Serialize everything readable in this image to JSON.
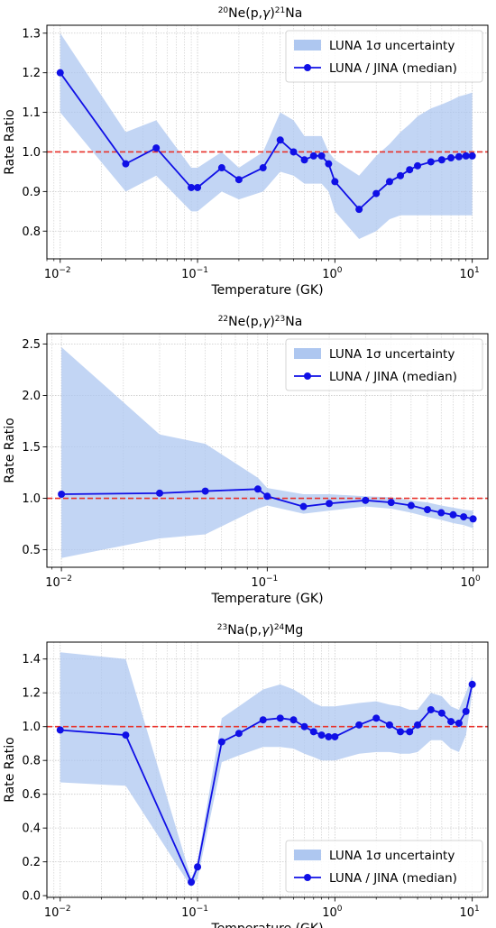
{
  "chart_data": [
    {
      "type": "line",
      "title": "²⁰Ne(p,γ)²¹Na",
      "title_parts": {
        "m1": "20",
        "a": "Ne(p,",
        "g": "γ",
        "b": ")",
        "m2": "21",
        "c": "Na"
      },
      "xlabel": "Temperature (GK)",
      "ylabel": "Rate Ratio",
      "xscale": "log",
      "xlim": [
        0.008,
        13
      ],
      "ylim": [
        0.73,
        1.32
      ],
      "xticks": [
        0.01,
        0.1,
        1,
        10
      ],
      "xtick_labels": [
        {
          "base": "10",
          "exp": "−2"
        },
        {
          "base": "10",
          "exp": "−1"
        },
        {
          "base": "10",
          "exp": "0"
        },
        {
          "base": "10",
          "exp": "1"
        }
      ],
      "yticks": [
        0.8,
        0.9,
        1.0,
        1.1,
        1.2,
        1.3
      ],
      "ytick_labels": [
        "0.8",
        "0.9",
        "1.0",
        "1.1",
        "1.2",
        "1.3"
      ],
      "grid": true,
      "legend_position": "top-right",
      "reference_line": {
        "y": 1.0,
        "color": "#e8312a",
        "style": "dashed"
      },
      "band": {
        "name": "LUNA 1σ uncertainty",
        "color": "#aec7f0",
        "x": [
          0.01,
          0.03,
          0.05,
          0.09,
          0.1,
          0.15,
          0.2,
          0.3,
          0.4,
          0.5,
          0.6,
          0.7,
          0.8,
          0.9,
          1.0,
          1.5,
          2,
          2.5,
          3,
          3.5,
          4,
          5,
          6,
          7,
          8,
          9,
          10
        ],
        "upper": [
          1.3,
          1.05,
          1.08,
          0.96,
          0.96,
          1.0,
          0.96,
          1.0,
          1.1,
          1.08,
          1.04,
          1.04,
          1.04,
          1.0,
          0.98,
          0.94,
          0.99,
          1.02,
          1.05,
          1.07,
          1.09,
          1.11,
          1.12,
          1.13,
          1.14,
          1.145,
          1.15
        ],
        "lower": [
          1.1,
          0.9,
          0.94,
          0.85,
          0.85,
          0.9,
          0.88,
          0.9,
          0.95,
          0.94,
          0.92,
          0.92,
          0.92,
          0.9,
          0.85,
          0.78,
          0.8,
          0.83,
          0.84,
          0.84,
          0.84,
          0.84,
          0.84,
          0.84,
          0.84,
          0.84,
          0.84
        ]
      },
      "series": [
        {
          "name": "LUNA / JINA (median)",
          "color": "#1010e6",
          "x": [
            0.01,
            0.03,
            0.05,
            0.09,
            0.1,
            0.15,
            0.2,
            0.3,
            0.4,
            0.5,
            0.6,
            0.7,
            0.8,
            0.9,
            1.0,
            1.5,
            2,
            2.5,
            3,
            3.5,
            4,
            5,
            6,
            7,
            8,
            9,
            10
          ],
          "values": [
            1.2,
            0.97,
            1.01,
            0.91,
            0.91,
            0.96,
            0.93,
            0.96,
            1.03,
            1.0,
            0.98,
            0.99,
            0.99,
            0.97,
            0.925,
            0.855,
            0.895,
            0.925,
            0.94,
            0.955,
            0.965,
            0.975,
            0.98,
            0.985,
            0.988,
            0.99,
            0.99
          ]
        }
      ]
    },
    {
      "type": "line",
      "title": "²²Ne(p,γ)²³Na",
      "title_parts": {
        "m1": "22",
        "a": "Ne(p,",
        "g": "γ",
        "b": ")",
        "m2": "23",
        "c": "Na"
      },
      "xlabel": "Temperature (GK)",
      "ylabel": "Rate Ratio",
      "xscale": "log",
      "xlim": [
        0.0085,
        1.18
      ],
      "ylim": [
        0.33,
        2.6
      ],
      "xticks": [
        0.01,
        0.1,
        1
      ],
      "xtick_labels": [
        {
          "base": "10",
          "exp": "−2"
        },
        {
          "base": "10",
          "exp": "−1"
        },
        {
          "base": "10",
          "exp": "0"
        }
      ],
      "yticks": [
        0.5,
        1.0,
        1.5,
        2.0,
        2.5
      ],
      "ytick_labels": [
        "0.5",
        "1.0",
        "1.5",
        "2.0",
        "2.5"
      ],
      "grid": true,
      "legend_position": "top-right",
      "reference_line": {
        "y": 1.0,
        "color": "#e8312a",
        "style": "dashed"
      },
      "band": {
        "name": "LUNA 1σ uncertainty",
        "color": "#aec7f0",
        "x": [
          0.01,
          0.03,
          0.05,
          0.09,
          0.1,
          0.15,
          0.2,
          0.3,
          0.4,
          0.5,
          0.6,
          0.7,
          0.8,
          0.9,
          1.0
        ],
        "upper": [
          2.47,
          1.62,
          1.53,
          1.2,
          1.1,
          1.04,
          1.04,
          1.02,
          1.01,
          0.98,
          0.96,
          0.93,
          0.91,
          0.89,
          0.88
        ],
        "lower": [
          0.42,
          0.61,
          0.65,
          0.9,
          0.93,
          0.85,
          0.88,
          0.92,
          0.9,
          0.86,
          0.82,
          0.79,
          0.76,
          0.74,
          0.71
        ]
      },
      "series": [
        {
          "name": "LUNA / JINA (median)",
          "color": "#1010e6",
          "x": [
            0.01,
            0.03,
            0.05,
            0.09,
            0.1,
            0.15,
            0.2,
            0.3,
            0.4,
            0.5,
            0.6,
            0.7,
            0.8,
            0.9,
            1.0
          ],
          "values": [
            1.04,
            1.05,
            1.07,
            1.09,
            1.02,
            0.92,
            0.95,
            0.98,
            0.96,
            0.93,
            0.89,
            0.86,
            0.84,
            0.82,
            0.8
          ]
        }
      ]
    },
    {
      "type": "line",
      "title": "²³Na(p,γ)²⁴Mg",
      "title_parts": {
        "m1": "23",
        "a": "Na(p,",
        "g": "γ",
        "b": ")",
        "m2": "24",
        "c": "Mg"
      },
      "xlabel": "Temperature (GK)",
      "ylabel": "Rate Ratio",
      "xscale": "log",
      "xlim": [
        0.008,
        13
      ],
      "ylim": [
        -0.01,
        1.5
      ],
      "xticks": [
        0.01,
        0.1,
        1,
        10
      ],
      "xtick_labels": [
        {
          "base": "10",
          "exp": "−2"
        },
        {
          "base": "10",
          "exp": "−1"
        },
        {
          "base": "10",
          "exp": "0"
        },
        {
          "base": "10",
          "exp": "1"
        }
      ],
      "yticks": [
        0.0,
        0.2,
        0.4,
        0.6,
        0.8,
        1.0,
        1.2,
        1.4
      ],
      "ytick_labels": [
        "0.0",
        "0.2",
        "0.4",
        "0.6",
        "0.8",
        "1.0",
        "1.2",
        "1.4"
      ],
      "grid": true,
      "legend_position": "bottom-right",
      "reference_line": {
        "y": 1.0,
        "color": "#e8312a",
        "style": "dashed"
      },
      "band": {
        "name": "LUNA 1σ uncertainty",
        "color": "#aec7f0",
        "x": [
          0.01,
          0.03,
          0.09,
          0.1,
          0.15,
          0.2,
          0.3,
          0.4,
          0.5,
          0.6,
          0.7,
          0.8,
          0.9,
          1.0,
          1.5,
          2,
          2.5,
          3,
          3.5,
          4,
          5,
          6,
          7,
          8,
          9,
          10
        ],
        "upper": [
          1.44,
          1.4,
          0.1,
          0.2,
          1.05,
          1.12,
          1.22,
          1.25,
          1.22,
          1.18,
          1.14,
          1.12,
          1.12,
          1.12,
          1.14,
          1.15,
          1.13,
          1.12,
          1.1,
          1.1,
          1.2,
          1.18,
          1.12,
          1.1,
          1.2,
          1.3
        ],
        "lower": [
          0.67,
          0.65,
          0.05,
          0.1,
          0.79,
          0.83,
          0.88,
          0.88,
          0.87,
          0.84,
          0.82,
          0.8,
          0.8,
          0.8,
          0.84,
          0.85,
          0.85,
          0.84,
          0.84,
          0.85,
          0.92,
          0.92,
          0.87,
          0.85,
          0.95,
          1.2
        ]
      },
      "series": [
        {
          "name": "LUNA / JINA (median)",
          "color": "#1010e6",
          "x": [
            0.01,
            0.03,
            0.09,
            0.1,
            0.15,
            0.2,
            0.3,
            0.4,
            0.5,
            0.6,
            0.7,
            0.8,
            0.9,
            1.0,
            1.5,
            2,
            2.5,
            3,
            3.5,
            4,
            5,
            6,
            7,
            8,
            9,
            10
          ],
          "values": [
            0.98,
            0.95,
            0.08,
            0.17,
            0.91,
            0.96,
            1.04,
            1.05,
            1.04,
            1.0,
            0.97,
            0.95,
            0.94,
            0.94,
            1.01,
            1.05,
            1.01,
            0.97,
            0.97,
            1.01,
            1.1,
            1.08,
            1.03,
            1.02,
            1.09,
            1.25
          ]
        }
      ]
    }
  ]
}
